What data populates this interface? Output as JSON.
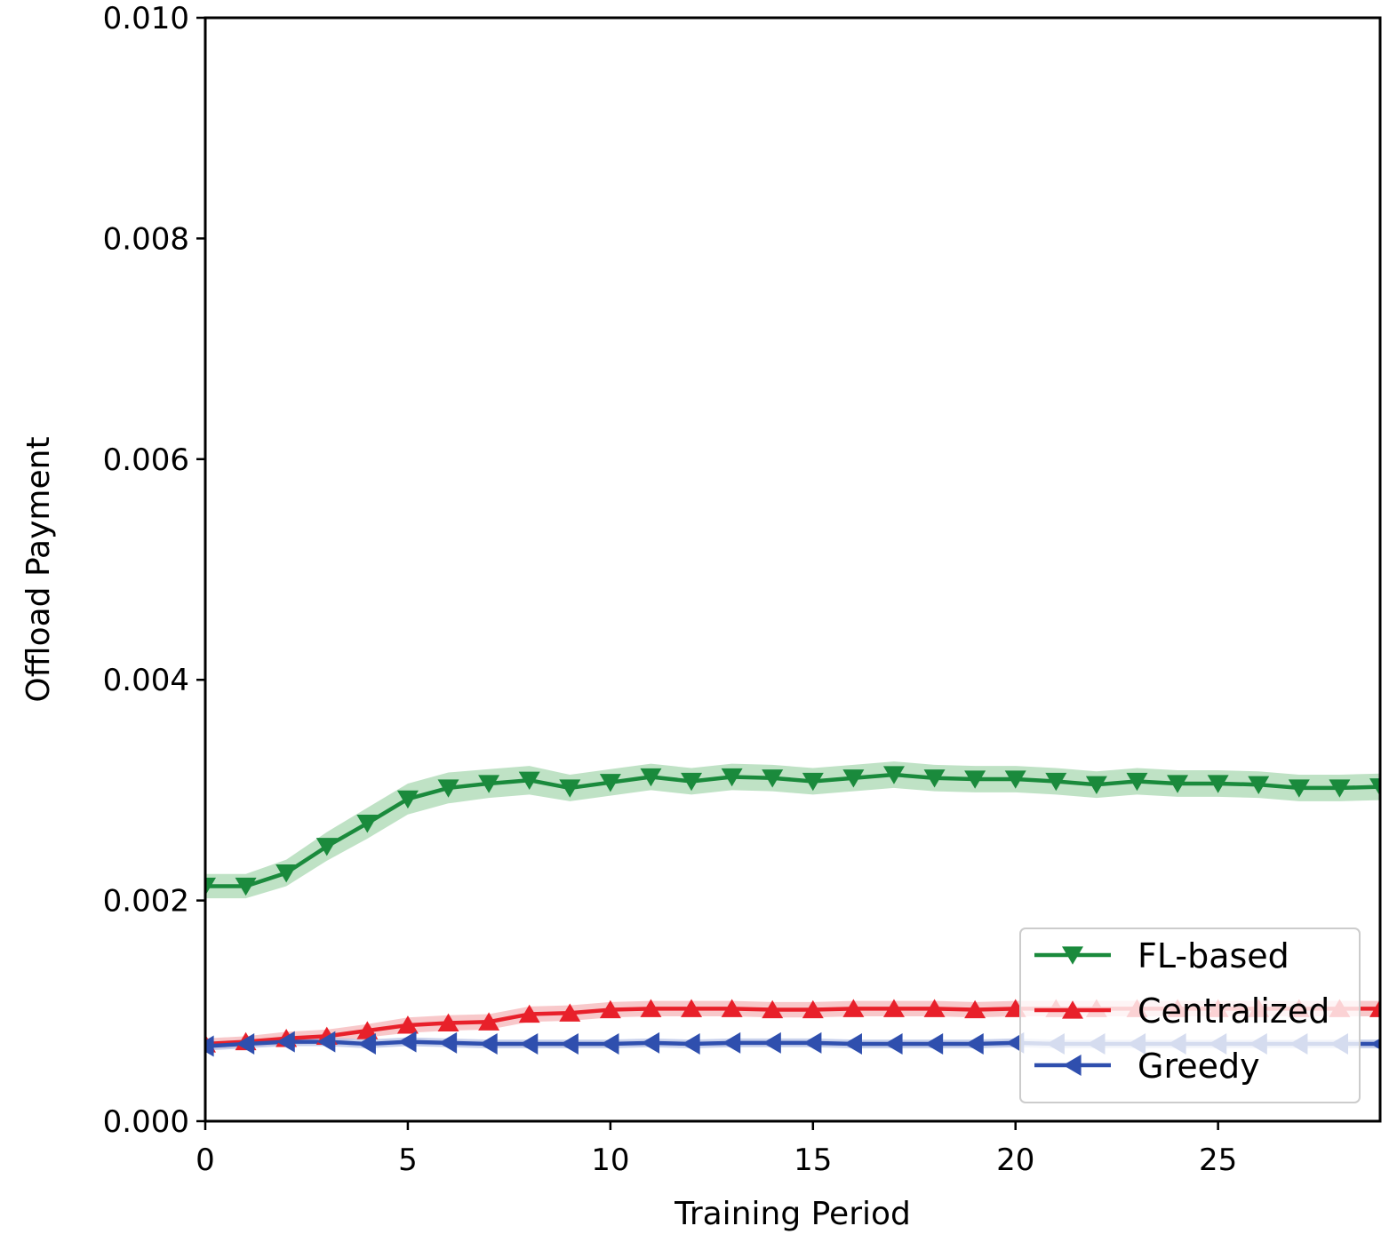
{
  "chart_data": {
    "type": "line",
    "title": "",
    "xlabel": "Training Period",
    "ylabel": "Offload Payment",
    "xlim": [
      0,
      29
    ],
    "ylim": [
      0,
      0.01
    ],
    "xticks": [
      0,
      5,
      10,
      15,
      20,
      25
    ],
    "xtick_labels": [
      "0",
      "5",
      "10",
      "15",
      "20",
      "25"
    ],
    "yticks": [
      0.0,
      0.002,
      0.004,
      0.006,
      0.008,
      0.01
    ],
    "ytick_labels": [
      "0.000",
      "0.002",
      "0.004",
      "0.006",
      "0.008",
      "0.010"
    ],
    "legend_position": "lower-right",
    "x": [
      0,
      1,
      2,
      3,
      4,
      5,
      6,
      7,
      8,
      9,
      10,
      11,
      12,
      13,
      14,
      15,
      16,
      17,
      18,
      19,
      20,
      21,
      22,
      23,
      24,
      25,
      26,
      27,
      28,
      29
    ],
    "series": [
      {
        "name": "FL-based",
        "color": "#1a8a3c",
        "band_color": "#a9d8b2",
        "marker": "triangle-down",
        "values": [
          0.00213,
          0.00213,
          0.00225,
          0.00249,
          0.0027,
          0.00292,
          0.00302,
          0.00306,
          0.00309,
          0.00302,
          0.00307,
          0.00312,
          0.00308,
          0.00312,
          0.00311,
          0.00308,
          0.00311,
          0.00314,
          0.00311,
          0.0031,
          0.0031,
          0.00308,
          0.00305,
          0.00308,
          0.00306,
          0.00306,
          0.00305,
          0.00302,
          0.00302,
          0.00303
        ],
        "band": [
          0.00011,
          0.00011,
          0.00012,
          0.00013,
          0.00014,
          0.00014,
          0.00014,
          0.00013,
          0.00013,
          0.00012,
          0.00012,
          0.00012,
          0.00012,
          0.00012,
          0.00012,
          0.00012,
          0.00012,
          0.00012,
          0.00012,
          0.00012,
          0.00012,
          0.00012,
          0.00012,
          0.00012,
          0.00012,
          0.00012,
          0.00012,
          0.00012,
          0.00012,
          0.00012
        ]
      },
      {
        "name": "Centralized",
        "color": "#e8202a",
        "band_color": "#f6b6b8",
        "marker": "triangle-up",
        "values": [
          0.0007,
          0.00072,
          0.00075,
          0.00077,
          0.00082,
          0.00087,
          0.00089,
          0.0009,
          0.00097,
          0.00098,
          0.00101,
          0.00102,
          0.00102,
          0.00102,
          0.00101,
          0.00101,
          0.00102,
          0.00102,
          0.00102,
          0.00101,
          0.00102,
          0.00102,
          0.00102,
          0.00102,
          0.00102,
          0.00102,
          0.00102,
          0.00102,
          0.00102,
          0.00102
        ],
        "band": [
          5e-05,
          5e-05,
          6e-05,
          6e-05,
          6e-05,
          7e-05,
          7e-05,
          7e-05,
          7e-05,
          7e-05,
          7e-05,
          7e-05,
          7e-05,
          7e-05,
          7e-05,
          7e-05,
          7e-05,
          7e-05,
          7e-05,
          7e-05,
          7e-05,
          7e-05,
          7e-05,
          7e-05,
          7e-05,
          7e-05,
          7e-05,
          7e-05,
          7e-05,
          7e-05
        ]
      },
      {
        "name": "Greedy",
        "color": "#2f4fae",
        "band_color": "#b6c2e6",
        "marker": "triangle-left",
        "values": [
          0.00068,
          0.0007,
          0.00072,
          0.00072,
          0.0007,
          0.00072,
          0.00071,
          0.0007,
          0.0007,
          0.0007,
          0.0007,
          0.00071,
          0.0007,
          0.00071,
          0.00071,
          0.00071,
          0.0007,
          0.0007,
          0.0007,
          0.0007,
          0.00071,
          0.0007,
          0.0007,
          0.0007,
          0.0007,
          0.0007,
          0.0007,
          0.0007,
          0.0007,
          0.0007
        ],
        "band": [
          4e-05,
          4e-05,
          4e-05,
          4e-05,
          4e-05,
          4e-05,
          4e-05,
          4e-05,
          4e-05,
          4e-05,
          4e-05,
          4e-05,
          4e-05,
          4e-05,
          4e-05,
          4e-05,
          4e-05,
          4e-05,
          4e-05,
          4e-05,
          4e-05,
          4e-05,
          4e-05,
          4e-05,
          4e-05,
          4e-05,
          4e-05,
          4e-05,
          4e-05,
          4e-05
        ]
      }
    ]
  }
}
